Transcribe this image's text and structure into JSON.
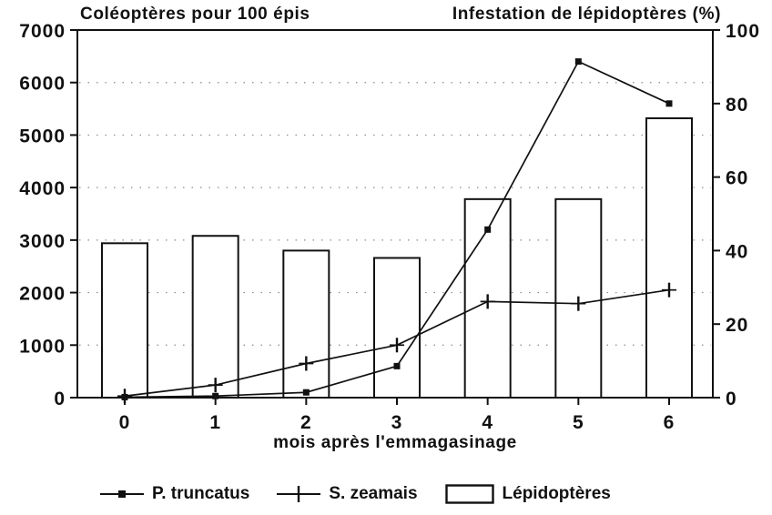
{
  "chart_data": {
    "type": "combo",
    "title_left": "Coléoptères pour 100 épis",
    "title_right": "Infestation de lépidoptères (%)",
    "x": [
      0,
      1,
      2,
      3,
      4,
      5,
      6
    ],
    "x_axis": {
      "title": "mois après l'emmagasinage",
      "tick_labels": [
        "0",
        "1",
        "2",
        "3",
        "4",
        "5",
        "6"
      ]
    },
    "left_axis": {
      "label": "Coléoptères pour 100 épis",
      "min": 0,
      "max": 7000,
      "ticks": [
        0,
        1000,
        2000,
        3000,
        4000,
        5000,
        6000,
        7000
      ]
    },
    "right_axis": {
      "label": "Infestation de lépidoptères (%)",
      "min": 0,
      "max": 100,
      "ticks": [
        0,
        20,
        40,
        60,
        80,
        100
      ]
    },
    "grid": "horizontal-dotted",
    "legend_position": "bottom",
    "series": [
      {
        "name": "P. truncatus",
        "type": "line",
        "axis": "left",
        "marker": "filled-square",
        "values": [
          10,
          30,
          100,
          600,
          3200,
          6400,
          5600
        ]
      },
      {
        "name": "S. zeamais",
        "type": "line",
        "axis": "left",
        "marker": "plus",
        "values": [
          30,
          240,
          650,
          1000,
          1830,
          1790,
          2050
        ]
      },
      {
        "name": "Lépidoptères",
        "type": "bar",
        "axis": "right",
        "values": [
          42,
          44,
          40,
          38,
          54,
          54,
          76
        ]
      }
    ]
  },
  "colors": {
    "ink": "#111111",
    "background": "#ffffff",
    "grid_dots": "#8a8a8a"
  }
}
